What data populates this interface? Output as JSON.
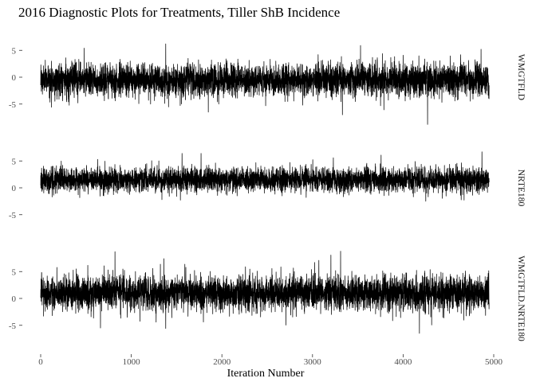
{
  "chart_data": {
    "type": "line",
    "title": "2016 Diagnostic Plots for Treatments, Tiller ShB Incidence",
    "xlabel": "Iteration Number",
    "ylabel": "",
    "xlim": [
      0,
      5000
    ],
    "ylim": [
      -9,
      9
    ],
    "x_ticks": [
      0,
      1000,
      2000,
      3000,
      4000,
      5000
    ],
    "x_tick_labels": [
      "0",
      "1000",
      "2000",
      "3000",
      "4000",
      "5000"
    ],
    "y_ticks": [
      -5,
      0,
      5
    ],
    "y_tick_labels": [
      "-5",
      "0",
      "5"
    ],
    "grid": false,
    "facets": "rows, shared x-axis, strip labels on the right",
    "n_iterations": 4950,
    "series": [
      {
        "name": "WMGTFLD",
        "mean": -0.5,
        "sd": 1.5,
        "spikes": [
          {
            "x": 480,
            "y": 5.4
          },
          {
            "x": 1380,
            "y": 6.2
          },
          {
            "x": 3530,
            "y": 5.9
          },
          {
            "x": 4860,
            "y": 5.2
          },
          {
            "x": 4270,
            "y": -8.8
          },
          {
            "x": 3330,
            "y": -7.0
          },
          {
            "x": 1850,
            "y": -6.5
          },
          {
            "x": 120,
            "y": -5.6
          }
        ]
      },
      {
        "name": "NRTE180",
        "mean": 1.5,
        "sd": 1.1,
        "spikes": [
          {
            "x": 1560,
            "y": 6.4
          },
          {
            "x": 1770,
            "y": 6.4
          },
          {
            "x": 4870,
            "y": 6.7
          },
          {
            "x": 630,
            "y": 5.3
          },
          {
            "x": 3230,
            "y": 5.6
          },
          {
            "x": 4250,
            "y": -2.5
          }
        ]
      },
      {
        "name": "WMGTFLD.NRTE180",
        "mean": 1.0,
        "sd": 1.6,
        "spikes": [
          {
            "x": 820,
            "y": 8.7
          },
          {
            "x": 3310,
            "y": 8.8
          },
          {
            "x": 3070,
            "y": 7.1
          },
          {
            "x": 1360,
            "y": 7.4
          },
          {
            "x": 4180,
            "y": -6.5
          },
          {
            "x": 1380,
            "y": -5.6
          },
          {
            "x": 660,
            "y": -5.5
          }
        ]
      }
    ]
  }
}
